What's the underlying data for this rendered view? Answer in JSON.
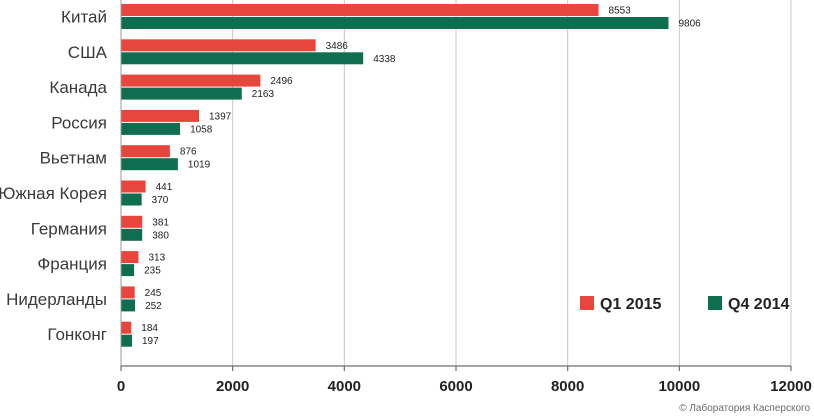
{
  "chart_data": {
    "type": "bar",
    "orientation": "horizontal",
    "categories": [
      "Китай",
      "США",
      "Канада",
      "Россия",
      "Вьетнам",
      "Южная Корея",
      "Германия",
      "Франция",
      "Нидерланды",
      "Гонконг"
    ],
    "series": [
      {
        "name": "Q1 2015",
        "color": "#e8453c",
        "values": [
          8553,
          3486,
          2496,
          1397,
          876,
          441,
          381,
          313,
          245,
          184
        ]
      },
      {
        "name": "Q4 2014",
        "color": "#0f6e4f",
        "values": [
          9806,
          4338,
          2163,
          1058,
          1019,
          370,
          380,
          235,
          252,
          197
        ]
      }
    ],
    "xlim": [
      0,
      12000
    ],
    "x_ticks": [
      0,
      2000,
      4000,
      6000,
      8000,
      10000,
      12000
    ],
    "x_tick_labels": [
      "0",
      "2000",
      "4000",
      "6000",
      "8000",
      "10000",
      "12000"
    ],
    "grid": "vertical",
    "legend_position": "bottom-right"
  },
  "credit": "© Лаборатория Касперского"
}
